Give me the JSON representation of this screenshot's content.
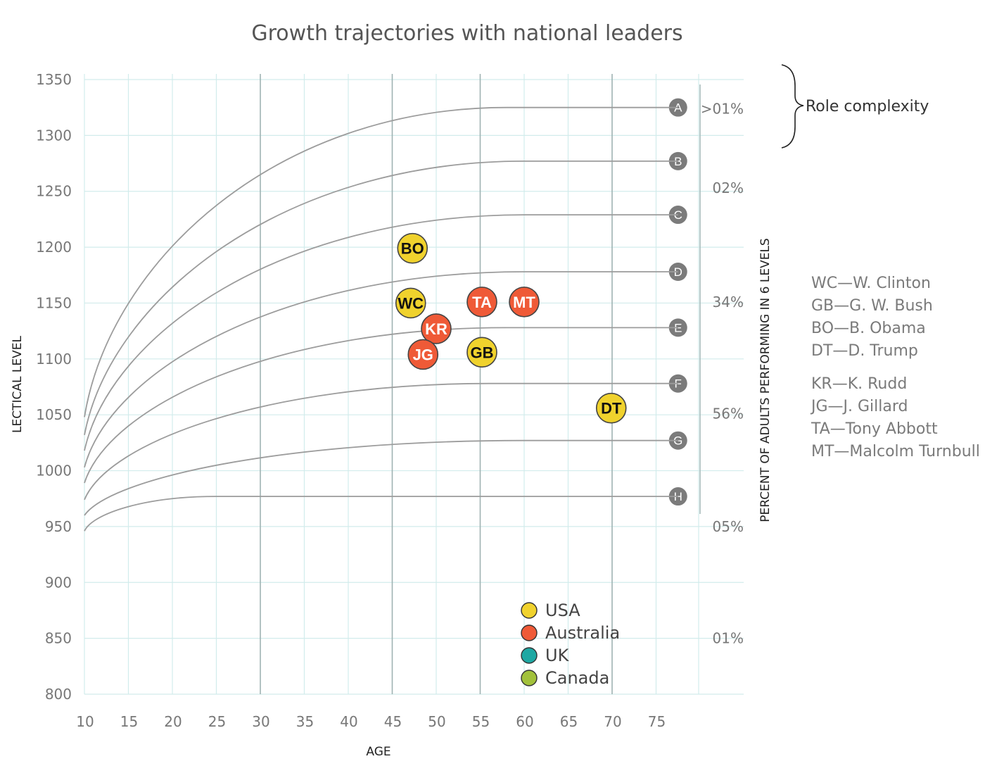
{
  "chart_data": {
    "type": "scatter",
    "title": "Growth trajectories with national leaders",
    "xlabel": "AGE",
    "ylabel": "LECTICAL LEVEL",
    "y2label": "PERCENT OF ADULTS PERFORMING IN 6 LEVELS",
    "xlim": [
      10,
      80
    ],
    "ylim": [
      800,
      1350
    ],
    "xticks": [
      10,
      15,
      20,
      25,
      30,
      35,
      40,
      45,
      50,
      55,
      60,
      65,
      70,
      75
    ],
    "yticks": [
      800,
      850,
      900,
      950,
      1000,
      1050,
      1100,
      1150,
      1200,
      1250,
      1300,
      1350
    ],
    "grid": true,
    "trajectories": [
      {
        "label": "A",
        "start": 1048,
        "end": 1325,
        "plateau_age": 58
      },
      {
        "label": "B",
        "start": 1032,
        "end": 1277,
        "plateau_age": 60
      },
      {
        "label": "C",
        "start": 1018,
        "end": 1229,
        "plateau_age": 60
      },
      {
        "label": "D",
        "start": 1003,
        "end": 1178,
        "plateau_age": 60
      },
      {
        "label": "E",
        "start": 989,
        "end": 1128,
        "plateau_age": 58
      },
      {
        "label": "F",
        "start": 974,
        "end": 1078,
        "plateau_age": 56
      },
      {
        "label": "G",
        "start": 960,
        "end": 1027,
        "plateau_age": 60
      },
      {
        "label": "H",
        "start": 946,
        "end": 977,
        "plateau_age": 25
      }
    ],
    "trajectory_end_age": 77.5,
    "percent_bands": [
      {
        "label": ">01%",
        "y": 1324
      },
      {
        "label": "02%",
        "y": 1253
      },
      {
        "label": "34%",
        "y": 1151
      },
      {
        "label": "56%",
        "y": 1051
      },
      {
        "label": "05%",
        "y": 950
      },
      {
        "label": "01%",
        "y": 850
      }
    ],
    "series": [
      {
        "name": "USA",
        "color": "#f0d22d",
        "text_color": "#111111",
        "points": [
          {
            "label": "BO",
            "x": 47.3,
            "y": 1199
          },
          {
            "label": "WC",
            "x": 47.1,
            "y": 1150
          },
          {
            "label": "GB",
            "x": 55.2,
            "y": 1106
          },
          {
            "label": "DT",
            "x": 69.9,
            "y": 1056
          }
        ]
      },
      {
        "name": "Australia",
        "color": "#ef5a37",
        "text_color": "#ffffff",
        "points": [
          {
            "label": "TA",
            "x": 55.2,
            "y": 1151
          },
          {
            "label": "MT",
            "x": 60.0,
            "y": 1151
          },
          {
            "label": "KR",
            "x": 50.0,
            "y": 1127
          },
          {
            "label": "JG",
            "x": 48.5,
            "y": 1104
          }
        ]
      },
      {
        "name": "UK",
        "color": "#1ea8a3",
        "text_color": "#ffffff",
        "points": []
      },
      {
        "name": "Canada",
        "color": "#a2c13b",
        "text_color": "#ffffff",
        "points": []
      }
    ],
    "legend_position": "bottom-right",
    "role_complexity_label": "Role complexity",
    "leader_key": [
      [
        "WC—W. Clinton",
        "GB—G. W. Bush",
        "BO—B. Obama",
        "DT—D. Trump"
      ],
      [
        "KR—K. Rudd",
        "JG—J. Gillard",
        "TA—Tony Abbott",
        "MT—Malcolm Turnbull"
      ]
    ],
    "colors": {
      "grid_light": "#d2ecec",
      "grid_dark": "#9fb2b2",
      "curve": "#9c9c9c",
      "level_marker": "#7b7b7b"
    }
  }
}
